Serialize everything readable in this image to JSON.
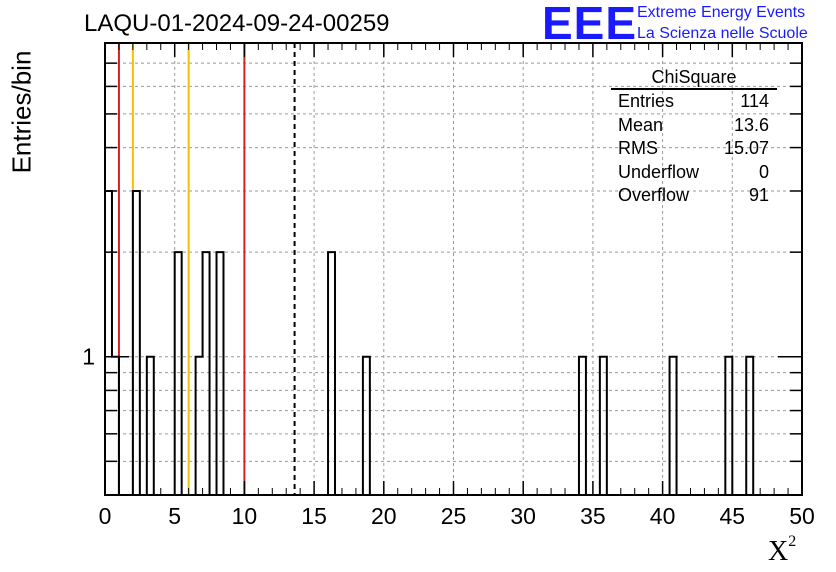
{
  "title": "LAQU-01-2024-09-24-00259",
  "logo": {
    "mark": "EEE",
    "line1": "Extreme Energy Events",
    "line2": "La Scienza nelle Scuole",
    "color": "#1a1aff"
  },
  "stats": {
    "name": "ChiSquare",
    "rows": [
      {
        "label": "Entries",
        "value": "114"
      },
      {
        "label": "Mean",
        "value": "13.6"
      },
      {
        "label": "RMS",
        "value": "15.07"
      },
      {
        "label": "Underflow",
        "value": "0"
      },
      {
        "label": "Overflow",
        "value": "91"
      }
    ]
  },
  "chart_data": {
    "type": "bar",
    "title": "LAQU-01-2024-09-24-00259",
    "xlabel": "X",
    "xlabel_sup": "2",
    "ylabel": "Entries/bin",
    "xlim": [
      0,
      50
    ],
    "ylim": [
      0.4,
      8
    ],
    "log_y": true,
    "grid": true,
    "bin_width": 0.5,
    "bins": [
      {
        "x": 0,
        "y": 3
      },
      {
        "x": 0.5,
        "y": 1
      },
      {
        "x": 2,
        "y": 3
      },
      {
        "x": 3,
        "y": 1
      },
      {
        "x": 5,
        "y": 2
      },
      {
        "x": 6.5,
        "y": 1
      },
      {
        "x": 7,
        "y": 2
      },
      {
        "x": 8,
        "y": 2
      },
      {
        "x": 16,
        "y": 2
      },
      {
        "x": 18.5,
        "y": 1
      },
      {
        "x": 34,
        "y": 1
      },
      {
        "x": 35.5,
        "y": 1
      },
      {
        "x": 40.5,
        "y": 1
      },
      {
        "x": 44.5,
        "y": 1
      },
      {
        "x": 46,
        "y": 1
      }
    ],
    "x_ticks": [
      0,
      5,
      10,
      15,
      20,
      25,
      30,
      35,
      40,
      45,
      50
    ],
    "y_tick_labels": [
      {
        "value": 1,
        "label": "1"
      }
    ],
    "ref_lines": [
      {
        "x": 1,
        "color": "#d42020",
        "style": "solid"
      },
      {
        "x": 2,
        "color": "#f2c200",
        "style": "solid"
      },
      {
        "x": 6,
        "color": "#f2c200",
        "style": "solid"
      },
      {
        "x": 10,
        "color": "#d42020",
        "style": "solid"
      },
      {
        "x": 13.6,
        "color": "#000000",
        "style": "dashed"
      }
    ]
  }
}
